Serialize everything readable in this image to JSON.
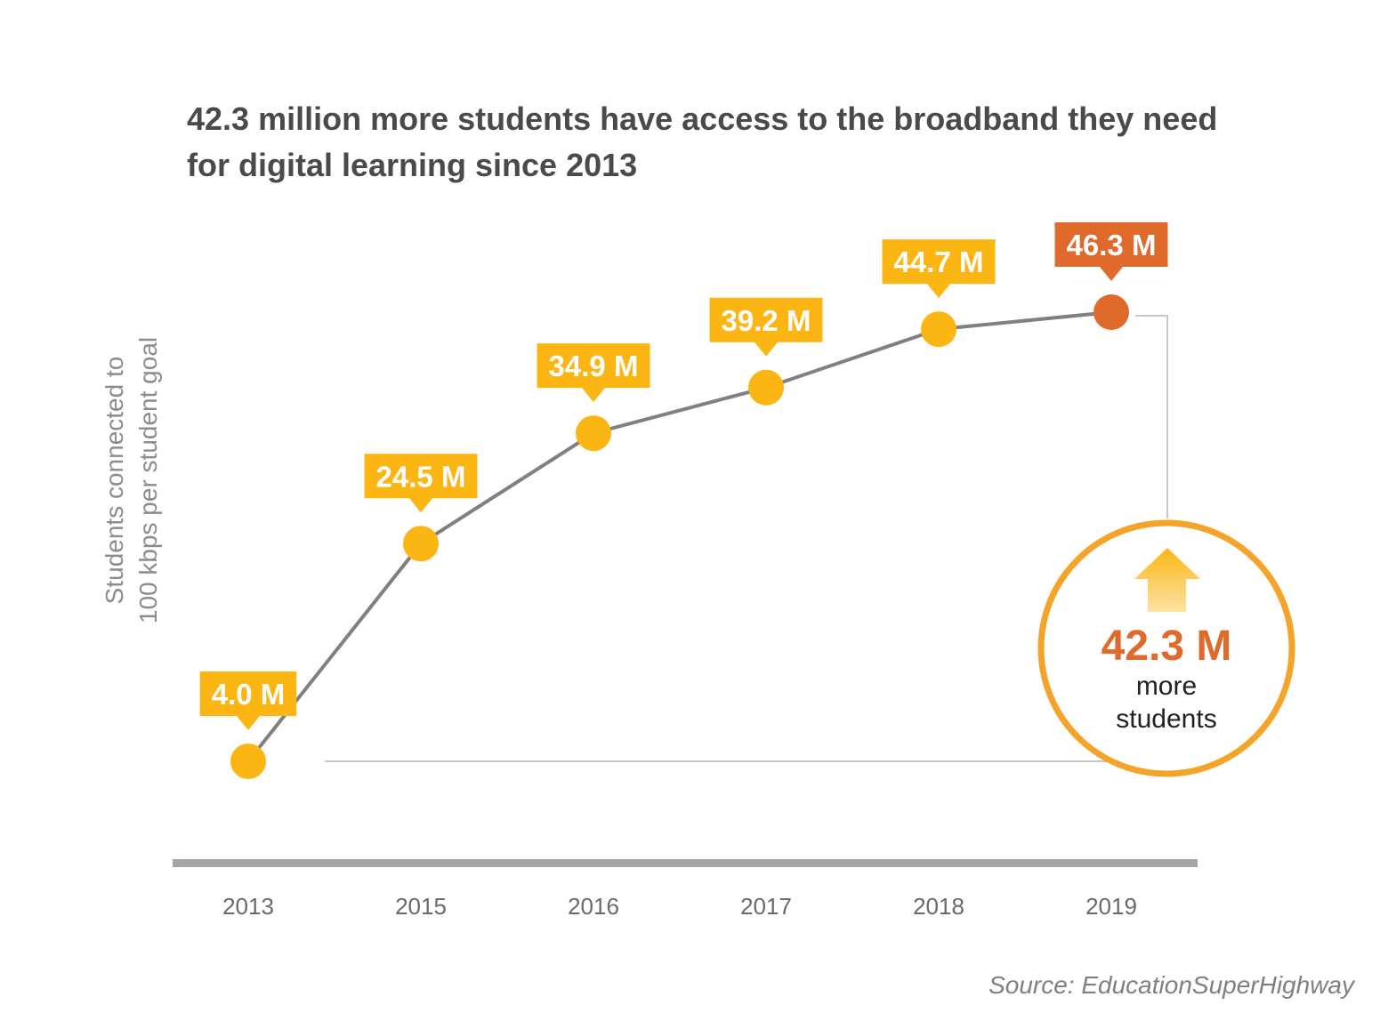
{
  "chart_data": {
    "type": "line",
    "title": "42.3 million more students have access to the broadband they need for digital learning since 2013",
    "ylabel": [
      "Students connected to",
      "100 kbps per student goal"
    ],
    "xlabel": "",
    "units": "M",
    "categories": [
      "2013",
      "2015",
      "2016",
      "2017",
      "2018",
      "2019"
    ],
    "values": [
      4.0,
      24.5,
      34.9,
      39.2,
      44.7,
      46.3
    ],
    "data_labels": [
      "4.0 M",
      "24.5 M",
      "34.9 M",
      "39.2 M",
      "44.7 M",
      "46.3 M"
    ],
    "highlight_index": 5,
    "grid": false,
    "legend": "none",
    "callout": {
      "value": "42.3 M",
      "text_line1": "more",
      "text_line2": "students",
      "icon": "up-arrow-icon"
    },
    "source": "Source: EducationSuperHighway"
  },
  "colors": {
    "point": "#fbb614",
    "highlight": "#e06a2c",
    "line": "#808080",
    "label_bg": "#fbb614",
    "highlight_label_bg": "#e06a2c",
    "callout_ring": "#f4a428",
    "axis": "#a6a6a6"
  }
}
